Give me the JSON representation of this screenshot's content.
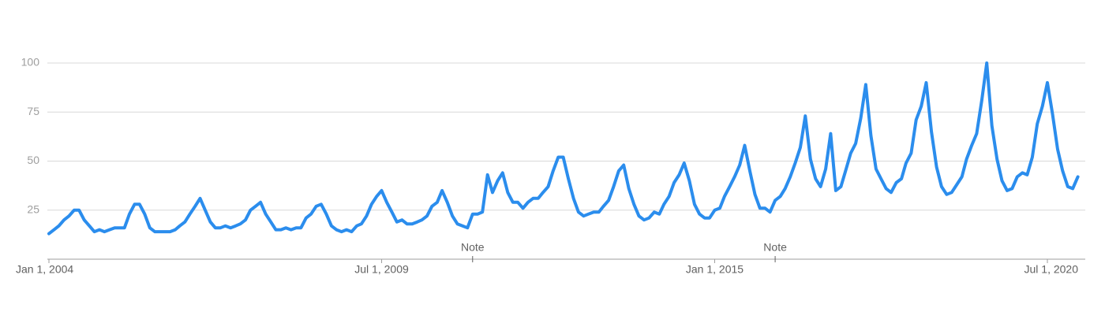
{
  "chart_data": {
    "type": "line",
    "x": [
      "2004-01-01",
      "2004-02-01",
      "2004-03-01",
      "2004-04-01",
      "2004-05-01",
      "2004-06-01",
      "2004-07-01",
      "2004-08-01",
      "2004-09-01",
      "2004-10-01",
      "2004-11-01",
      "2004-12-01",
      "2005-01-01",
      "2005-02-01",
      "2005-03-01",
      "2005-04-01",
      "2005-05-01",
      "2005-06-01",
      "2005-07-01",
      "2005-08-01",
      "2005-09-01",
      "2005-10-01",
      "2005-11-01",
      "2005-12-01",
      "2006-01-01",
      "2006-02-01",
      "2006-03-01",
      "2006-04-01",
      "2006-05-01",
      "2006-06-01",
      "2006-07-01",
      "2006-08-01",
      "2006-09-01",
      "2006-10-01",
      "2006-11-01",
      "2006-12-01",
      "2007-01-01",
      "2007-02-01",
      "2007-03-01",
      "2007-04-01",
      "2007-05-01",
      "2007-06-01",
      "2007-07-01",
      "2007-08-01",
      "2007-09-01",
      "2007-10-01",
      "2007-11-01",
      "2007-12-01",
      "2008-01-01",
      "2008-02-01",
      "2008-03-01",
      "2008-04-01",
      "2008-05-01",
      "2008-06-01",
      "2008-07-01",
      "2008-08-01",
      "2008-09-01",
      "2008-10-01",
      "2008-11-01",
      "2008-12-01",
      "2009-01-01",
      "2009-02-01",
      "2009-03-01",
      "2009-04-01",
      "2009-05-01",
      "2009-06-01",
      "2009-07-01",
      "2009-08-01",
      "2009-09-01",
      "2009-10-01",
      "2009-11-01",
      "2009-12-01",
      "2010-01-01",
      "2010-02-01",
      "2010-03-01",
      "2010-04-01",
      "2010-05-01",
      "2010-06-01",
      "2010-07-01",
      "2010-08-01",
      "2010-09-01",
      "2010-10-01",
      "2010-11-01",
      "2010-12-01",
      "2011-01-01",
      "2011-02-01",
      "2011-03-01",
      "2011-04-01",
      "2011-05-01",
      "2011-06-01",
      "2011-07-01",
      "2011-08-01",
      "2011-09-01",
      "2011-10-01",
      "2011-11-01",
      "2011-12-01",
      "2012-01-01",
      "2012-02-01",
      "2012-03-01",
      "2012-04-01",
      "2012-05-01",
      "2012-06-01",
      "2012-07-01",
      "2012-08-01",
      "2012-09-01",
      "2012-10-01",
      "2012-11-01",
      "2012-12-01",
      "2013-01-01",
      "2013-02-01",
      "2013-03-01",
      "2013-04-01",
      "2013-05-01",
      "2013-06-01",
      "2013-07-01",
      "2013-08-01",
      "2013-09-01",
      "2013-10-01",
      "2013-11-01",
      "2013-12-01",
      "2014-01-01",
      "2014-02-01",
      "2014-03-01",
      "2014-04-01",
      "2014-05-01",
      "2014-06-01",
      "2014-07-01",
      "2014-08-01",
      "2014-09-01",
      "2014-10-01",
      "2014-11-01",
      "2014-12-01",
      "2015-01-01",
      "2015-02-01",
      "2015-03-01",
      "2015-04-01",
      "2015-05-01",
      "2015-06-01",
      "2015-07-01",
      "2015-08-01",
      "2015-09-01",
      "2015-10-01",
      "2015-11-01",
      "2015-12-01",
      "2016-01-01",
      "2016-02-01",
      "2016-03-01",
      "2016-04-01",
      "2016-05-01",
      "2016-06-01",
      "2016-07-01",
      "2016-08-01",
      "2016-09-01",
      "2016-10-01",
      "2016-11-01",
      "2016-12-01",
      "2017-01-01",
      "2017-02-01",
      "2017-03-01",
      "2017-04-01",
      "2017-05-01",
      "2017-06-01",
      "2017-07-01",
      "2017-08-01",
      "2017-09-01",
      "2017-10-01",
      "2017-11-01",
      "2017-12-01",
      "2018-01-01",
      "2018-02-01",
      "2018-03-01",
      "2018-04-01",
      "2018-05-01",
      "2018-06-01",
      "2018-07-01",
      "2018-08-01",
      "2018-09-01",
      "2018-10-01",
      "2018-11-01",
      "2018-12-01",
      "2019-01-01",
      "2019-02-01",
      "2019-03-01",
      "2019-04-01",
      "2019-05-01",
      "2019-06-01",
      "2019-07-01",
      "2019-08-01",
      "2019-09-01",
      "2019-10-01",
      "2019-11-01",
      "2019-12-01",
      "2020-01-01",
      "2020-02-01",
      "2020-03-01",
      "2020-04-01",
      "2020-05-01",
      "2020-06-01",
      "2020-07-01",
      "2020-08-01",
      "2020-09-01",
      "2020-10-01",
      "2020-11-01",
      "2020-12-01",
      "2021-01-01"
    ],
    "series": [
      {
        "color": "#2b8ded",
        "values": [
          13,
          15,
          17,
          20,
          22,
          25,
          25,
          20,
          17,
          14,
          15,
          14,
          15,
          16,
          16,
          16,
          23,
          28,
          28,
          23,
          16,
          14,
          14,
          14,
          14,
          15,
          17,
          19,
          23,
          27,
          31,
          25,
          19,
          16,
          16,
          17,
          16,
          17,
          18,
          20,
          25,
          27,
          29,
          23,
          19,
          15,
          15,
          16,
          15,
          16,
          16,
          21,
          23,
          27,
          28,
          23,
          17,
          15,
          14,
          15,
          14,
          17,
          18,
          22,
          28,
          32,
          35,
          29,
          24,
          19,
          20,
          18,
          18,
          19,
          20,
          22,
          27,
          29,
          35,
          29,
          22,
          18,
          17,
          16,
          23,
          23,
          24,
          43,
          34,
          40,
          44,
          34,
          29,
          29,
          26,
          29,
          31,
          31,
          34,
          37,
          45,
          52,
          52,
          41,
          31,
          24,
          22,
          23,
          24,
          24,
          27,
          30,
          37,
          45,
          48,
          36,
          28,
          22,
          20,
          21,
          24,
          23,
          28,
          32,
          39,
          43,
          49,
          40,
          28,
          23,
          21,
          21,
          25,
          26,
          32,
          37,
          42,
          48,
          58,
          45,
          33,
          26,
          26,
          24,
          30,
          32,
          36,
          42,
          49,
          57,
          73,
          51,
          41,
          37,
          46,
          64,
          35,
          37,
          45,
          54,
          59,
          72,
          89,
          63,
          46,
          41,
          36,
          34,
          39,
          41,
          49,
          54,
          71,
          78,
          90,
          65,
          47,
          37,
          33,
          34,
          38,
          42,
          51,
          58,
          64,
          81,
          100,
          68,
          51,
          40,
          35,
          36,
          42,
          44,
          43,
          52,
          69,
          78,
          90,
          74,
          56,
          45,
          37,
          36,
          42
        ]
      }
    ],
    "xlim": [
      "2004-01-01",
      "2021-02-01"
    ],
    "xticks": [
      {
        "value": "2004-01-01",
        "label": "Jan 1, 2004"
      },
      {
        "value": "2009-07-01",
        "label": "Jul 1, 2009"
      },
      {
        "value": "2015-01-01",
        "label": "Jan 1, 2015"
      },
      {
        "value": "2020-07-01",
        "label": "Jul 1, 2020"
      }
    ],
    "ylim": [
      0,
      100
    ],
    "yticks": [
      25,
      50,
      75,
      100
    ],
    "grid": true,
    "annotations": [
      {
        "x": "2011-01-01",
        "label": "Note"
      },
      {
        "x": "2016-01-01",
        "label": "Note"
      }
    ]
  }
}
